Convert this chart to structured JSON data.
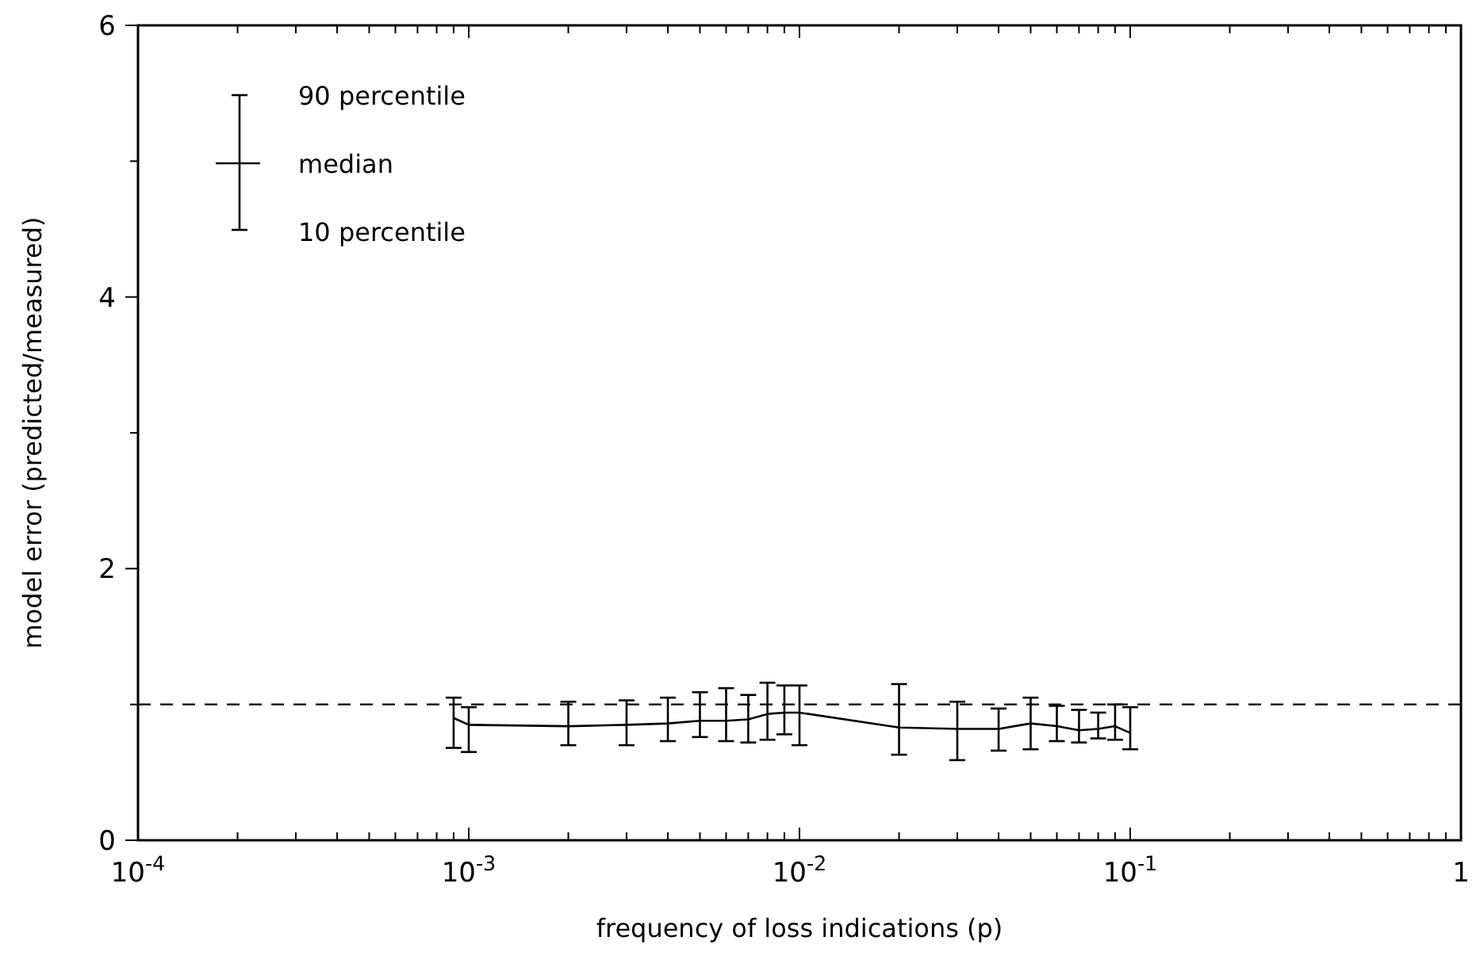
{
  "chart_data": {
    "type": "line",
    "xlabel": "frequency of loss indications (p)",
    "ylabel": "model error (predicted/measured)",
    "log": "x",
    "xlim": [
      0.0001,
      1
    ],
    "ylim": [
      0,
      6
    ],
    "xticks": [
      {
        "value": 0.0001,
        "label": "10$^{-4}$"
      },
      {
        "value": 0.0002,
        "label": null
      },
      {
        "value": 0.0003,
        "label": null
      },
      {
        "value": 0.0004,
        "label": null
      },
      {
        "value": 0.0005,
        "label": null
      },
      {
        "value": 0.0006,
        "label": null
      },
      {
        "value": 0.0007,
        "label": null
      },
      {
        "value": 0.0008,
        "label": null
      },
      {
        "value": 0.0009,
        "label": null
      },
      {
        "value": 0.001,
        "label": "10$^{-3}$"
      },
      {
        "value": 0.002,
        "label": null
      },
      {
        "value": 0.003,
        "label": null
      },
      {
        "value": 0.004,
        "label": null
      },
      {
        "value": 0.005,
        "label": null
      },
      {
        "value": 0.006,
        "label": null
      },
      {
        "value": 0.007,
        "label": null
      },
      {
        "value": 0.008,
        "label": null
      },
      {
        "value": 0.009,
        "label": null
      },
      {
        "value": 0.01,
        "label": "10$^{-2}$"
      },
      {
        "value": 0.02,
        "label": null
      },
      {
        "value": 0.03,
        "label": null
      },
      {
        "value": 0.04,
        "label": null
      },
      {
        "value": 0.05,
        "label": null
      },
      {
        "value": 0.06,
        "label": null
      },
      {
        "value": 0.07,
        "label": null
      },
      {
        "value": 0.08,
        "label": null
      },
      {
        "value": 0.09,
        "label": null
      },
      {
        "value": 0.1,
        "label": "10$^{-1}$"
      },
      {
        "value": 0.2,
        "label": null
      },
      {
        "value": 0.3,
        "label": null
      },
      {
        "value": 0.4,
        "label": null
      },
      {
        "value": 0.5,
        "label": null
      },
      {
        "value": 0.6,
        "label": null
      },
      {
        "value": 0.7,
        "label": null
      },
      {
        "value": 0.8,
        "label": null
      },
      {
        "value": 0.9,
        "label": null
      },
      {
        "value": 1,
        "label": "1"
      }
    ],
    "yticks": [
      0,
      {
        "value": 1,
        "label": null
      },
      2,
      {
        "value": 3,
        "label": null
      },
      4,
      {
        "value": 5,
        "label": null
      },
      6
    ],
    "grid": false,
    "marker": "none",
    "line_style": "solid",
    "ref_lines": [
      {
        "axis": "y",
        "value": 1,
        "line_style": "dashed",
        "color": "#000000"
      }
    ],
    "annotations": [
      "90 percentile",
      "median",
      "10 percentile"
    ],
    "series": [
      {
        "color": "#000000",
        "x": [
          0.0009,
          0.001,
          0.002,
          0.003,
          0.004,
          0.005,
          0.006,
          0.007,
          0.008,
          0.009,
          0.01,
          0.02,
          0.03,
          0.04,
          0.05,
          0.06,
          0.07,
          0.08,
          0.09,
          0.1
        ],
        "values": [
          0.9,
          0.85,
          0.84,
          0.85,
          0.86,
          0.88,
          0.88,
          0.89,
          0.93,
          0.94,
          0.94,
          0.83,
          0.82,
          0.82,
          0.86,
          0.84,
          0.81,
          0.82,
          0.84,
          0.79
        ],
        "errors": [
          [
            0.68,
            1.05
          ],
          [
            0.65,
            0.98
          ],
          [
            0.7,
            1.02
          ],
          [
            0.7,
            1.03
          ],
          [
            0.73,
            1.05
          ],
          [
            0.76,
            1.09
          ],
          [
            0.73,
            1.12
          ],
          [
            0.72,
            1.07
          ],
          [
            0.74,
            1.16
          ],
          [
            0.78,
            1.14
          ],
          [
            0.7,
            1.14
          ],
          [
            0.63,
            1.15
          ],
          [
            0.59,
            1.02
          ],
          [
            0.66,
            0.97
          ],
          [
            0.67,
            1.05
          ],
          [
            0.73,
            0.99
          ],
          [
            0.72,
            0.96
          ],
          [
            0.75,
            0.94
          ],
          [
            0.74,
            1.0
          ],
          [
            0.67,
            0.98
          ]
        ]
      }
    ]
  }
}
